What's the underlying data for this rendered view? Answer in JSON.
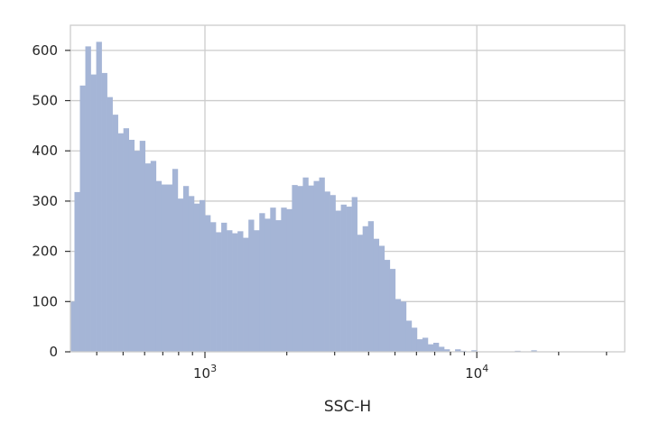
{
  "chart_data": {
    "type": "bar",
    "title": "",
    "xlabel": "SSC-H",
    "ylabel": "",
    "x_scale": "log",
    "xlim": [
      320,
      35000
    ],
    "ylim": [
      0,
      650
    ],
    "grid": true,
    "y_ticks": [
      "0",
      "100",
      "200",
      "300",
      "400",
      "500",
      "600"
    ],
    "x_major_ticks": [
      {
        "base": "10",
        "exp": "3",
        "value": 1000
      },
      {
        "base": "10",
        "exp": "4",
        "value": 10000
      }
    ],
    "bar_color": "#a5b5d6",
    "bin_edges_log10": {
      "start": 2.5,
      "end": 4.5,
      "count": 100
    },
    "series": [
      {
        "values": [
          100,
          318,
          530,
          608,
          552,
          617,
          555,
          507,
          472,
          435,
          445,
          422,
          400,
          420,
          375,
          380,
          340,
          333,
          333,
          364,
          305,
          330,
          310,
          295,
          302,
          272,
          258,
          238,
          257,
          242,
          236,
          240,
          227,
          263,
          242,
          276,
          265,
          287,
          262,
          287,
          284,
          332,
          330,
          347,
          331,
          340,
          347,
          319,
          312,
          281,
          293,
          289,
          308,
          233,
          250,
          260,
          225,
          211,
          183,
          165,
          105,
          100,
          62,
          48,
          25,
          28,
          15,
          18,
          10,
          5,
          0,
          5,
          2,
          0,
          3,
          0,
          0,
          0,
          0,
          0,
          0,
          0,
          2,
          0,
          0,
          3,
          0,
          0,
          0,
          0,
          0,
          0,
          0,
          0,
          0,
          0,
          0,
          0,
          0,
          0
        ]
      }
    ]
  }
}
